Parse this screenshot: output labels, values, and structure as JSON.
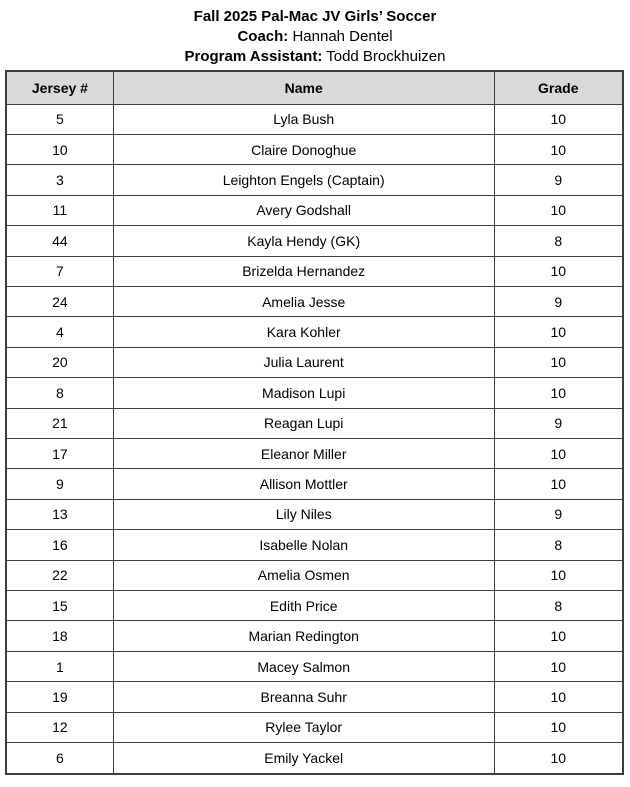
{
  "header": {
    "title": "Fall 2025 Pal-Mac JV Girls’ Soccer",
    "coach_label": "Coach:",
    "coach_name": "Hannah Dentel",
    "assistant_label": "Program Assistant:",
    "assistant_name": "Todd Brockhuizen"
  },
  "table": {
    "columns": [
      "Jersey #",
      "Name",
      "Grade"
    ],
    "rows": [
      {
        "jersey": "5",
        "name": "Lyla Bush",
        "grade": "10"
      },
      {
        "jersey": "10",
        "name": "Claire Donoghue",
        "grade": "10"
      },
      {
        "jersey": "3",
        "name": "Leighton Engels (Captain)",
        "grade": "9"
      },
      {
        "jersey": "11",
        "name": "Avery Godshall",
        "grade": "10"
      },
      {
        "jersey": "44",
        "name": "Kayla Hendy (GK)",
        "grade": "8"
      },
      {
        "jersey": "7",
        "name": "Brizelda Hernandez",
        "grade": "10"
      },
      {
        "jersey": "24",
        "name": "Amelia Jesse",
        "grade": "9"
      },
      {
        "jersey": "4",
        "name": "Kara Kohler",
        "grade": "10"
      },
      {
        "jersey": "20",
        "name": "Julia Laurent",
        "grade": "10"
      },
      {
        "jersey": "8",
        "name": "Madison Lupi",
        "grade": "10"
      },
      {
        "jersey": "21",
        "name": "Reagan Lupi",
        "grade": "9"
      },
      {
        "jersey": "17",
        "name": "Eleanor Miller",
        "grade": "10"
      },
      {
        "jersey": "9",
        "name": "Allison Mottler",
        "grade": "10"
      },
      {
        "jersey": "13",
        "name": "Lily Niles",
        "grade": "9"
      },
      {
        "jersey": "16",
        "name": "Isabelle Nolan",
        "grade": "8"
      },
      {
        "jersey": "22",
        "name": "Amelia Osmen",
        "grade": "10"
      },
      {
        "jersey": "15",
        "name": "Edith Price",
        "grade": "8"
      },
      {
        "jersey": "18",
        "name": "Marian Redington",
        "grade": "10"
      },
      {
        "jersey": "1",
        "name": "Macey Salmon",
        "grade": "10"
      },
      {
        "jersey": "19",
        "name": "Breanna Suhr",
        "grade": "10"
      },
      {
        "jersey": "12",
        "name": "Rylee Taylor",
        "grade": "10"
      },
      {
        "jersey": "6",
        "name": "Emily Yackel",
        "grade": "10"
      }
    ]
  },
  "colors": {
    "header_bg": "#d9d9d9",
    "border": "#3d3d3d",
    "text": "#000000"
  }
}
